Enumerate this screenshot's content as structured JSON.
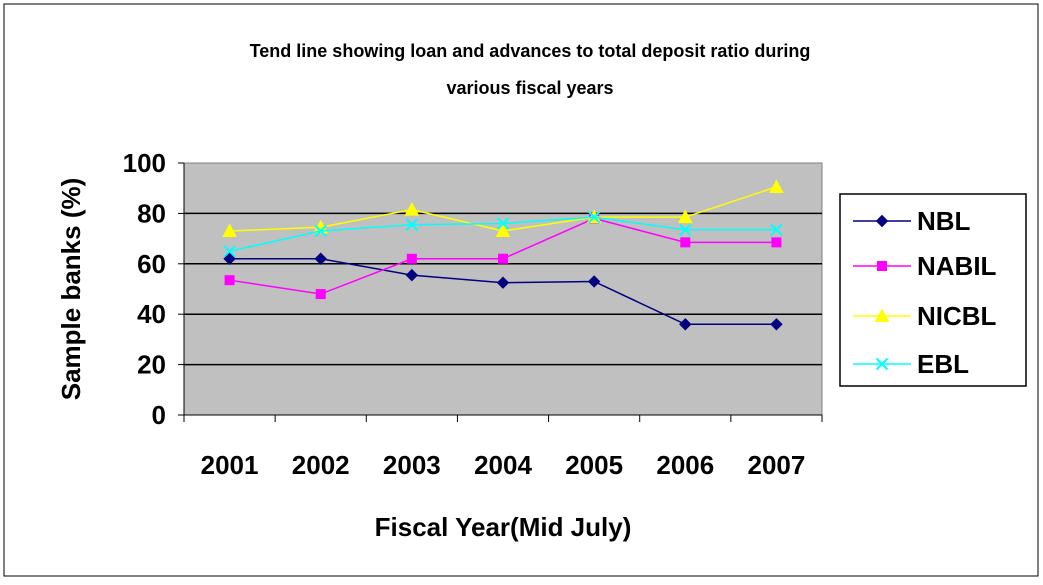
{
  "chart_data": {
    "type": "line",
    "title": "Tend line showing loan and advances to total deposit ratio during various fiscal years",
    "title_lines": [
      "Tend line showing loan and advances to total deposit ratio during",
      "various fiscal years"
    ],
    "xlabel": "Fiscal Year(Mid July)",
    "ylabel": "Sample banks (%)",
    "categories": [
      "2001",
      "2002",
      "2003",
      "2004",
      "2005",
      "2006",
      "2007"
    ],
    "ylim": [
      0,
      100
    ],
    "yticks": [
      "0",
      "20",
      "40",
      "60",
      "80",
      "100"
    ],
    "grid": true,
    "plot_background": "#c0c0c0",
    "legend_position": "right",
    "series": [
      {
        "name": "NBL",
        "color": "#000080",
        "marker": "diamond",
        "values": [
          62,
          62,
          55.5,
          52.5,
          53,
          36,
          36
        ]
      },
      {
        "name": "NABIL",
        "color": "#ff00ff",
        "marker": "square",
        "values": [
          53.5,
          48,
          62,
          62,
          78,
          68.5,
          68.5
        ]
      },
      {
        "name": "NICBL",
        "color": "#ffff00",
        "marker": "triangle",
        "values": [
          73,
          74.5,
          81.5,
          73,
          78.5,
          78.5,
          90.5
        ]
      },
      {
        "name": "EBL",
        "color": "#00ffff",
        "marker": "x",
        "values": [
          65,
          73,
          75.5,
          76,
          78.5,
          73.5,
          73.5
        ]
      }
    ]
  }
}
